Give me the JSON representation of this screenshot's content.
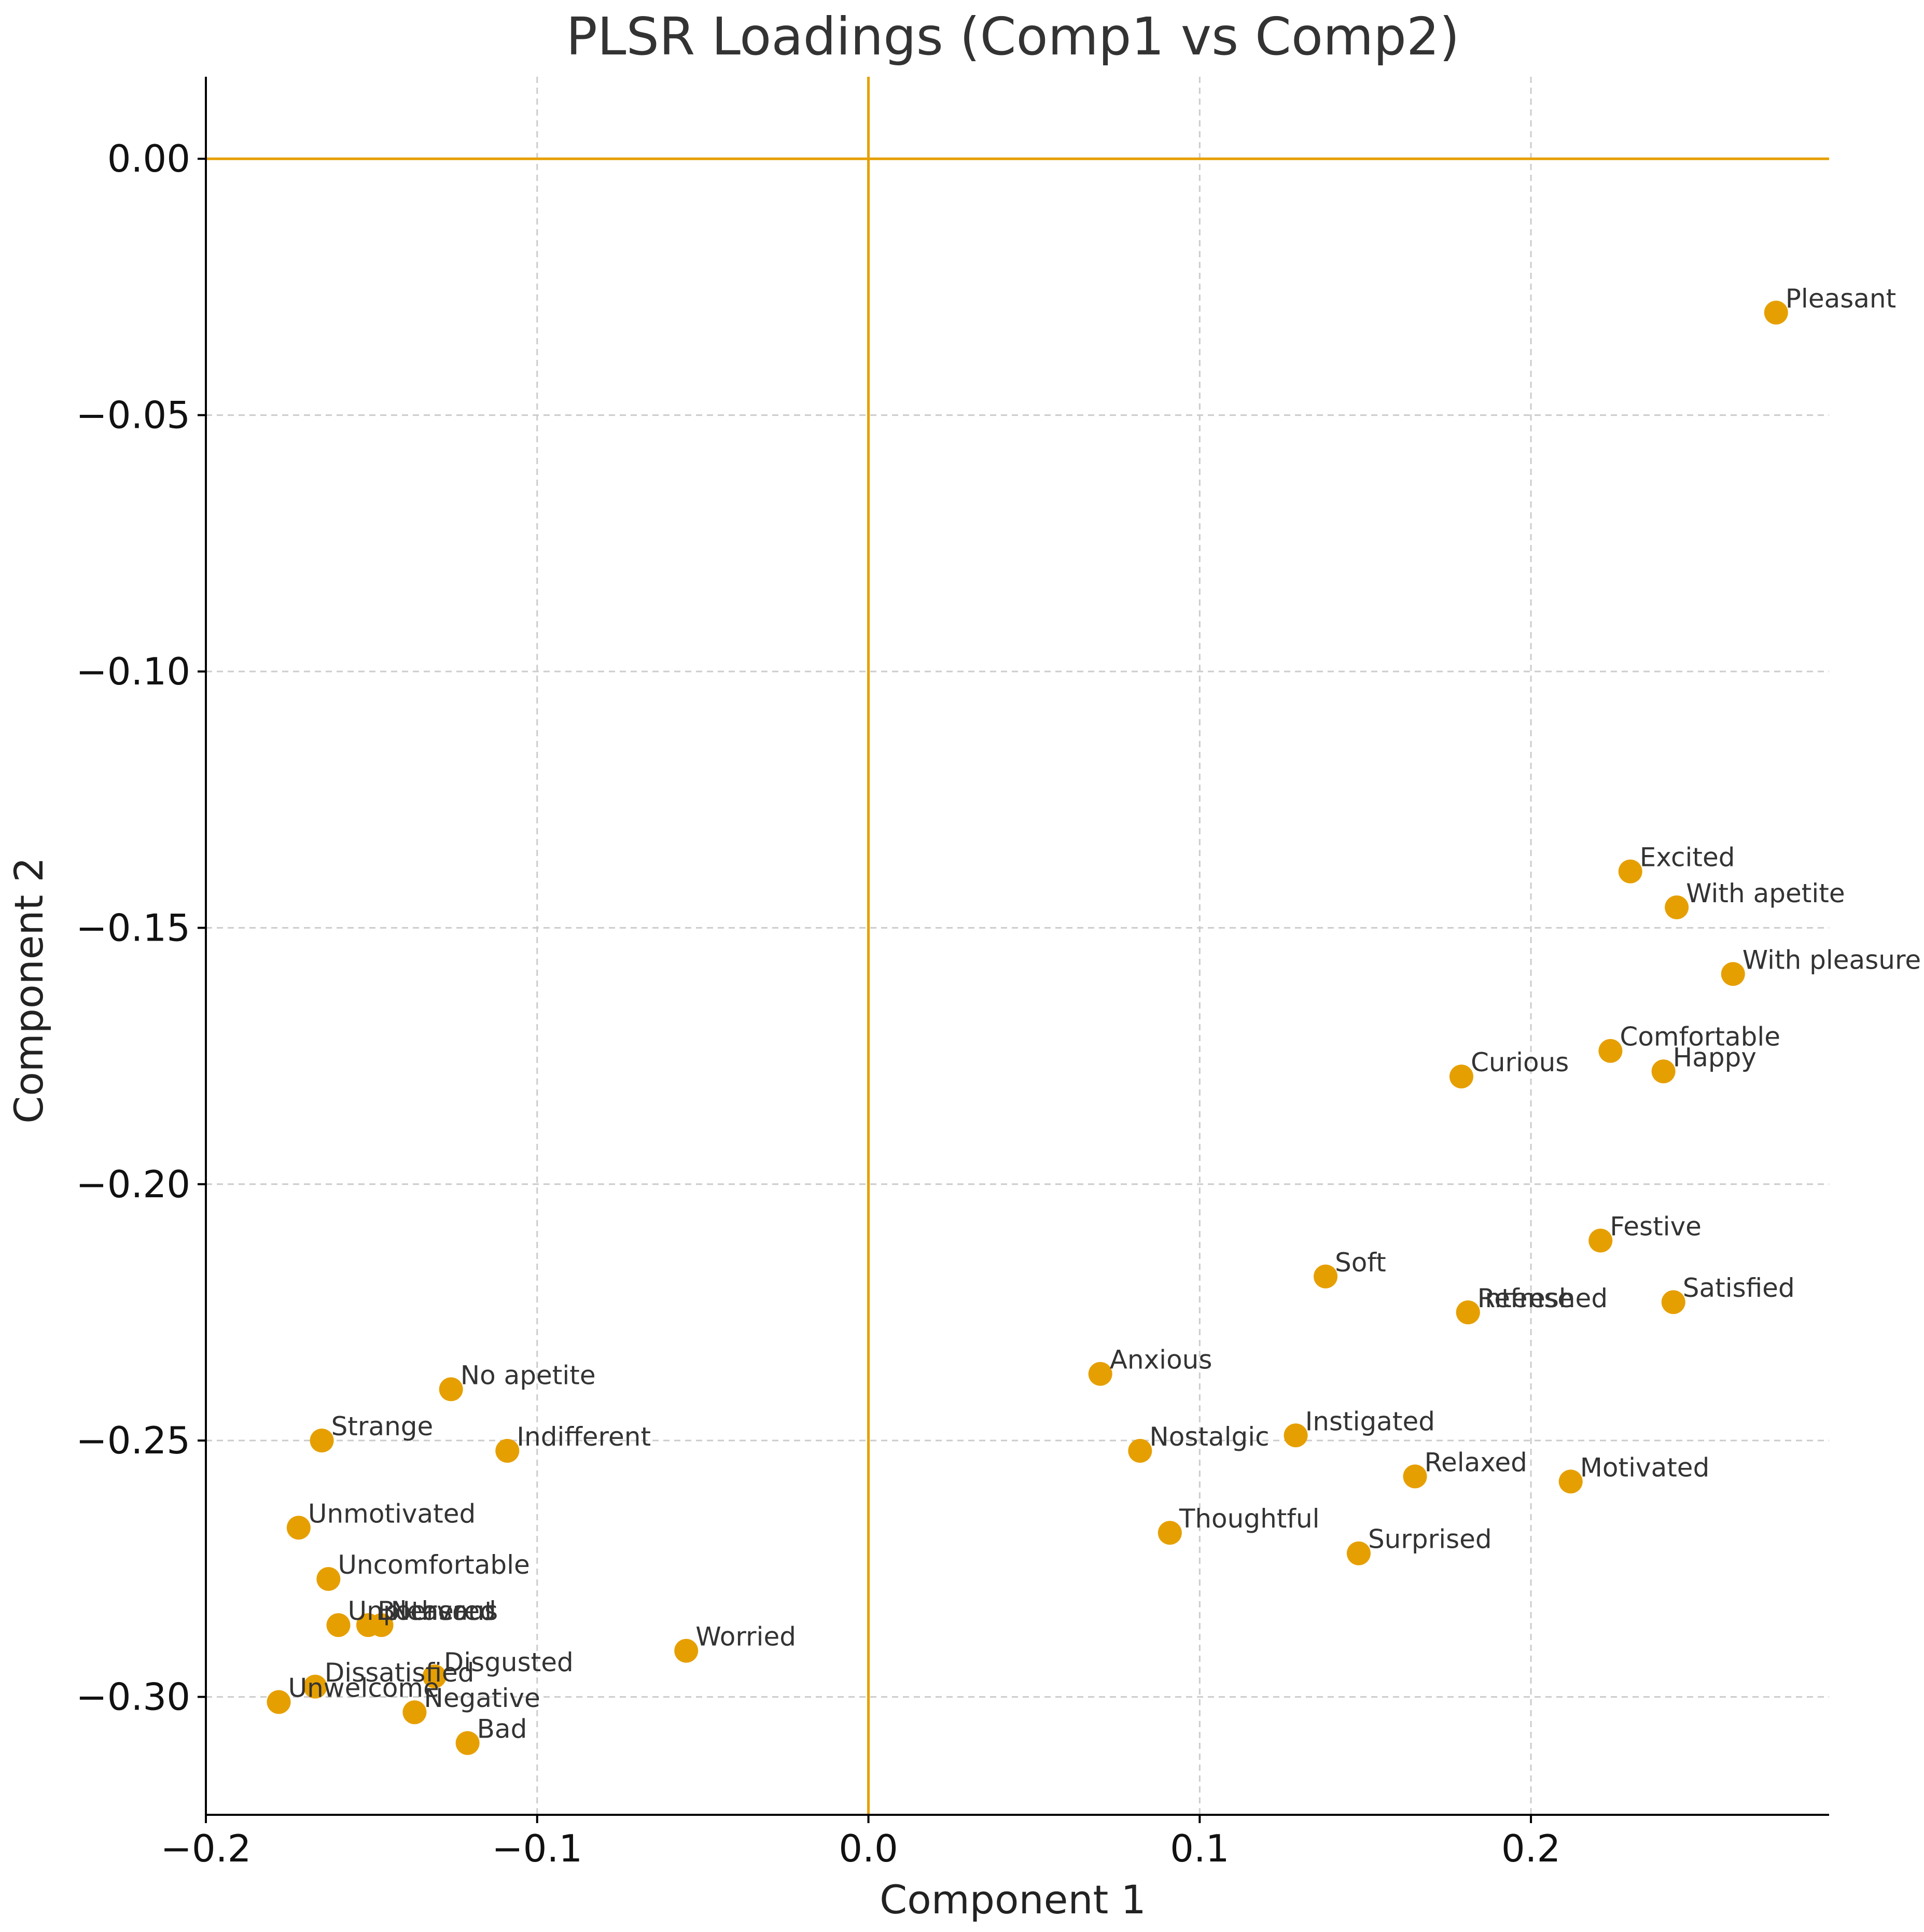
{
  "chart_data": {
    "type": "scatter",
    "title": "PLSR Loadings (Comp1 vs Comp2)",
    "xlabel": "Component 1",
    "ylabel": "Component 2",
    "xlim": [
      -0.2,
      0.29
    ],
    "ylim": [
      -0.323,
      0.016
    ],
    "xticks": [
      -0.2,
      -0.1,
      0.0,
      0.1,
      0.2
    ],
    "xtick_labels": [
      "−0.2",
      "−0.1",
      "0.0",
      "0.1",
      "0.2"
    ],
    "yticks": [
      0.0,
      -0.05,
      -0.1,
      -0.15,
      -0.2,
      -0.25,
      -0.3
    ],
    "ytick_labels": [
      "0.00",
      "−0.05",
      "−0.10",
      "−0.15",
      "−0.20",
      "−0.25",
      "−0.30"
    ],
    "grid": true,
    "reference_lines": {
      "x": 0.0,
      "y": 0.0
    },
    "colors": {
      "points": "#E69F00",
      "reference_lines": "#E69F00",
      "grid": "#cccccc",
      "text": "#333333"
    },
    "points": [
      {
        "label": "Pleasant",
        "x": 0.274,
        "y": -0.03
      },
      {
        "label": "Excited",
        "x": 0.23,
        "y": -0.139
      },
      {
        "label": "With apetite",
        "x": 0.244,
        "y": -0.146
      },
      {
        "label": "With pleasure",
        "x": 0.261,
        "y": -0.159
      },
      {
        "label": "Comfortable",
        "x": 0.224,
        "y": -0.174
      },
      {
        "label": "Happy",
        "x": 0.24,
        "y": -0.178
      },
      {
        "label": "Curious",
        "x": 0.179,
        "y": -0.179
      },
      {
        "label": "Festive",
        "x": 0.221,
        "y": -0.211
      },
      {
        "label": "Soft",
        "x": 0.138,
        "y": -0.218
      },
      {
        "label": "Refreshed",
        "x": 0.181,
        "y": -0.225
      },
      {
        "label": "Intense",
        "x": 0.181,
        "y": -0.225
      },
      {
        "label": "Satisfied",
        "x": 0.243,
        "y": -0.223
      },
      {
        "label": "Anxious",
        "x": 0.07,
        "y": -0.237
      },
      {
        "label": "Nostalgic",
        "x": 0.082,
        "y": -0.252
      },
      {
        "label": "Instigated",
        "x": 0.129,
        "y": -0.249
      },
      {
        "label": "Relaxed",
        "x": 0.165,
        "y": -0.257
      },
      {
        "label": "Motivated",
        "x": 0.212,
        "y": -0.258
      },
      {
        "label": "Thoughtful",
        "x": 0.091,
        "y": -0.268
      },
      {
        "label": "Surprised",
        "x": 0.148,
        "y": -0.272
      },
      {
        "label": "No apetite",
        "x": -0.126,
        "y": -0.24
      },
      {
        "label": "Strange",
        "x": -0.165,
        "y": -0.25
      },
      {
        "label": "Indifferent",
        "x": -0.109,
        "y": -0.252
      },
      {
        "label": "Unmotivated",
        "x": -0.172,
        "y": -0.267
      },
      {
        "label": "Uncomfortable",
        "x": -0.163,
        "y": -0.277
      },
      {
        "label": "Unpleasant",
        "x": -0.16,
        "y": -0.286
      },
      {
        "label": "Bothered",
        "x": -0.151,
        "y": -0.286
      },
      {
        "label": "Nervous",
        "x": -0.147,
        "y": -0.286
      },
      {
        "label": "Worried",
        "x": -0.055,
        "y": -0.291
      },
      {
        "label": "Disgusted",
        "x": -0.131,
        "y": -0.296
      },
      {
        "label": "Dissatisfied",
        "x": -0.167,
        "y": -0.298
      },
      {
        "label": "Unwelcome",
        "x": -0.178,
        "y": -0.301
      },
      {
        "label": "Negative",
        "x": -0.137,
        "y": -0.303
      },
      {
        "label": "Bad",
        "x": -0.121,
        "y": -0.309
      }
    ]
  }
}
